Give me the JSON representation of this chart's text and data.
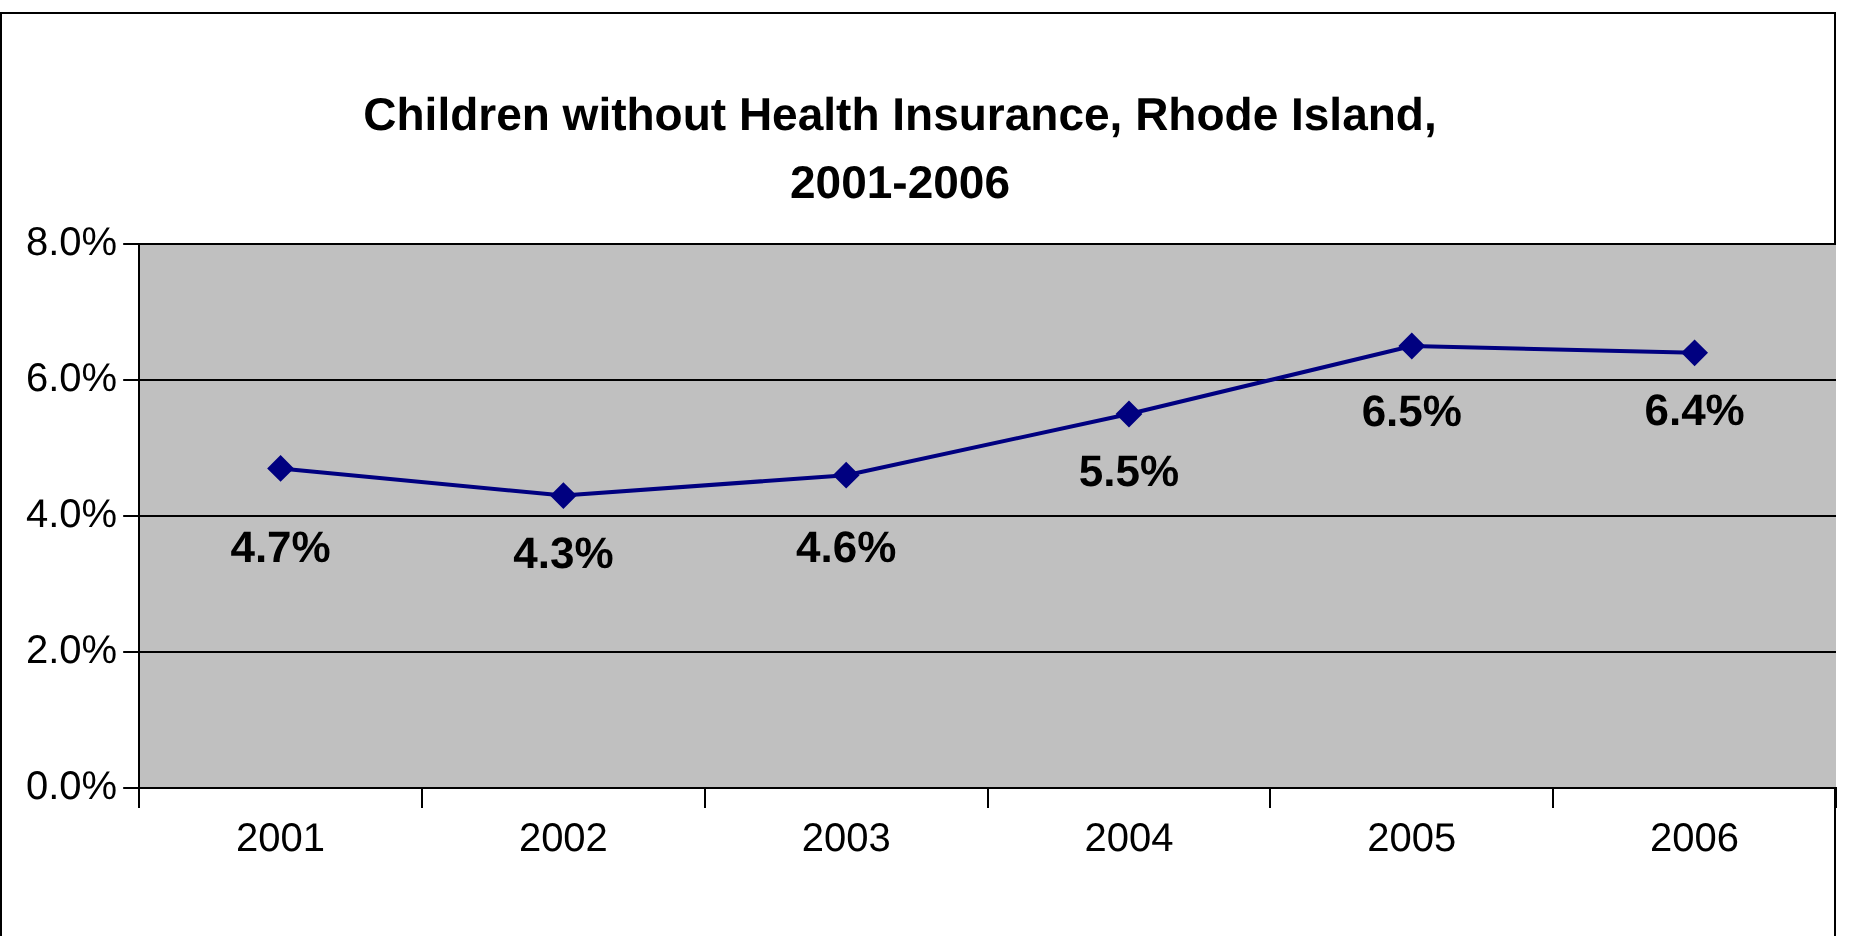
{
  "chart_data": {
    "type": "line",
    "title": "Children without Health Insurance, Rhode Island, 2001-2006",
    "categories": [
      "2001",
      "2002",
      "2003",
      "2004",
      "2005",
      "2006"
    ],
    "series": [
      {
        "color": "#000080",
        "values": [
          4.7,
          4.3,
          4.6,
          5.5,
          6.5,
          6.4
        ],
        "value_labels": [
          "4.7%",
          "4.3%",
          "4.6%",
          "5.5%",
          "6.5%",
          "6.4%"
        ]
      }
    ],
    "ylim": [
      0,
      8
    ],
    "yticks": [
      {
        "value": 0,
        "label": "0.0%"
      },
      {
        "value": 2,
        "label": "2.0%"
      },
      {
        "value": 4,
        "label": "4.0%"
      },
      {
        "value": 6,
        "label": "6.0%"
      },
      {
        "value": 8,
        "label": "8.0%"
      }
    ],
    "grid": "y",
    "legend": false,
    "marker": "diamond",
    "line_style": "solid"
  }
}
